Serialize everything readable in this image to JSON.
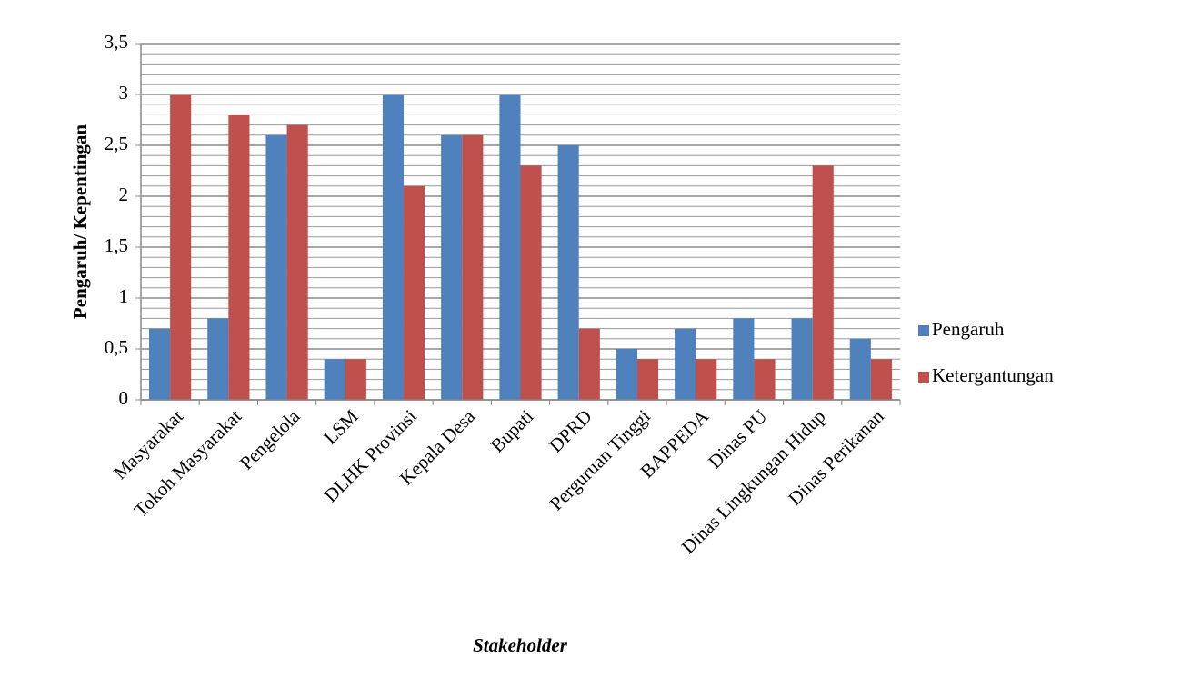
{
  "chart_data": {
    "type": "bar",
    "x_label": "Stakeholder",
    "y_label": "Pengaruh/ Kepentingan",
    "categories": [
      "Masyarakat",
      "Tokoh Masyarakat",
      "Pengelola",
      "LSM",
      "DLHK Provinsi",
      "Kepala Desa",
      "Bupati",
      "DPRD",
      "Perguruan Tinggi",
      "BAPPEDA",
      "Dinas PU",
      "Dinas Lingkungan Hidup",
      "Dinas Perikanan"
    ],
    "series": [
      {
        "name": "Pengaruh",
        "color": "#4f81bd",
        "values": [
          0.7,
          0.8,
          2.6,
          0.4,
          3,
          2.6,
          3,
          2.5,
          0.5,
          0.7,
          0.8,
          0.8,
          0.6
        ]
      },
      {
        "name": "Ketergantungan",
        "color": "#c0504d",
        "values": [
          3,
          2.8,
          2.7,
          0.4,
          2.1,
          2.6,
          2.3,
          0.7,
          0.4,
          0.4,
          0.4,
          2.3,
          0.4
        ]
      }
    ],
    "ylim": [
      0,
      3.5
    ],
    "yticks": [
      0,
      {
        "value": 0.5,
        "label": "0,5"
      },
      1,
      {
        "value": 1.5,
        "label": "1,5"
      },
      2,
      {
        "value": 2.5,
        "label": "2,5"
      },
      3,
      {
        "value": 3.5,
        "label": "3,5"
      }
    ],
    "grid": true,
    "grid_step": 0.1,
    "legend": "right"
  }
}
